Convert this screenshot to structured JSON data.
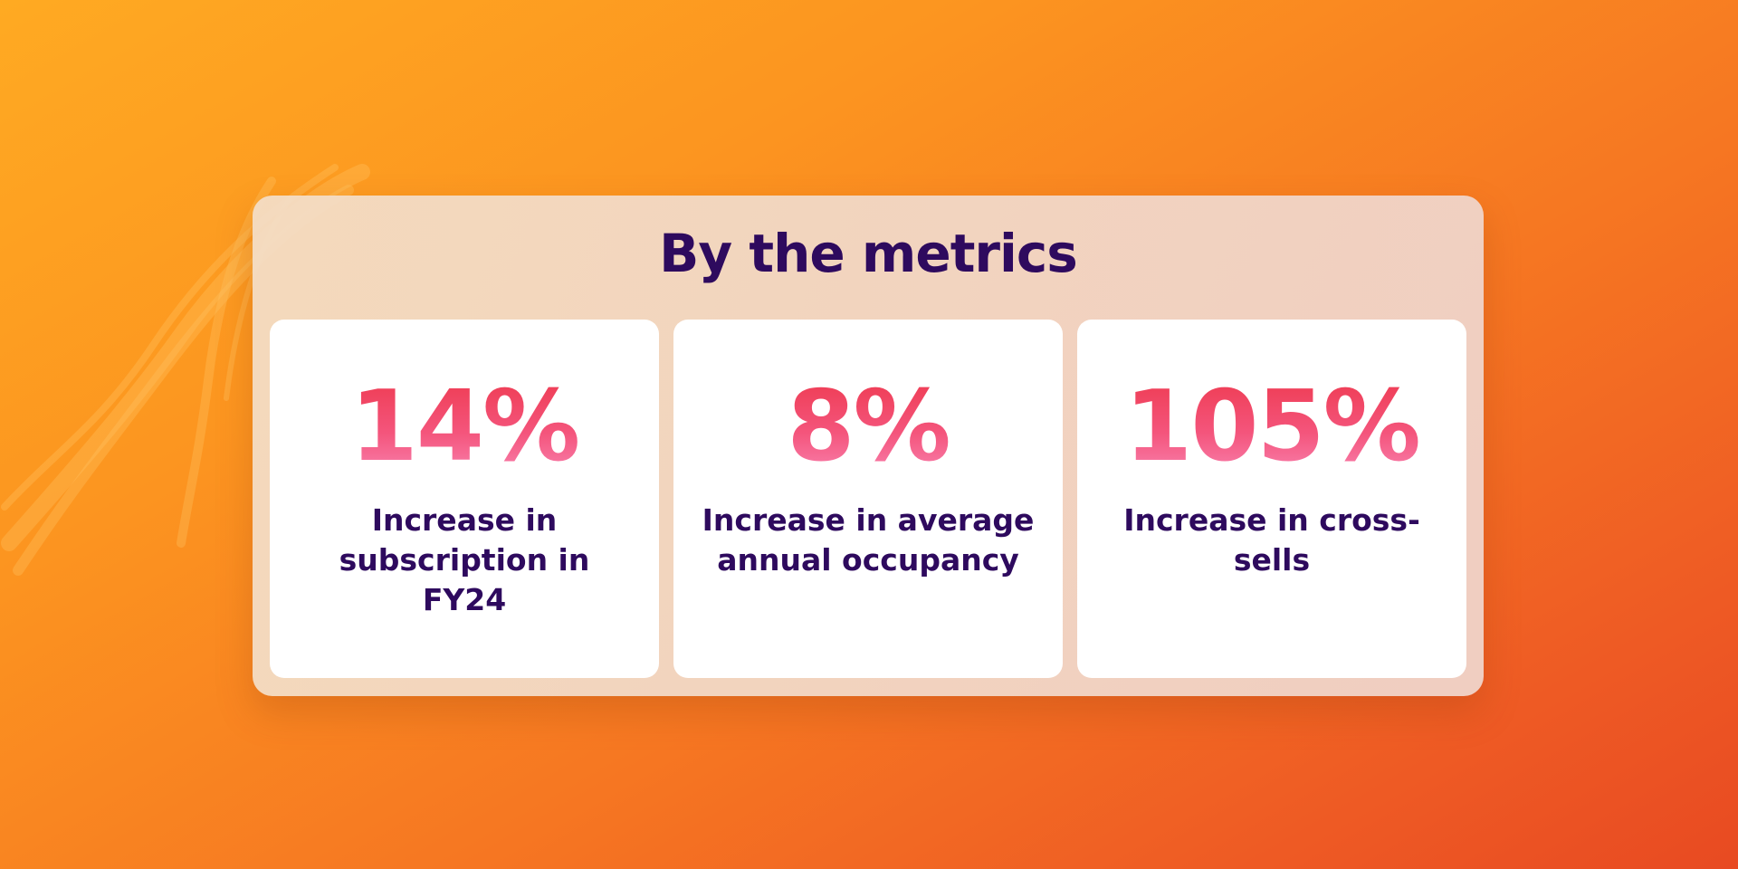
{
  "title": "By the metrics",
  "metrics": [
    {
      "value": "14%",
      "label": "Increase in subscription in FY24"
    },
    {
      "value": "8%",
      "label": "Increase in average annual occupancy"
    },
    {
      "value": "105%",
      "label": "Increase in cross-sells"
    }
  ],
  "colors": {
    "title_text": "#2E0A5E",
    "stat_gradient_top": "#EE3A50",
    "stat_gradient_bottom": "#F986B4",
    "background_start": "#FFAA22",
    "background_end": "#E84A22",
    "card_background": "#FFFFFF"
  }
}
